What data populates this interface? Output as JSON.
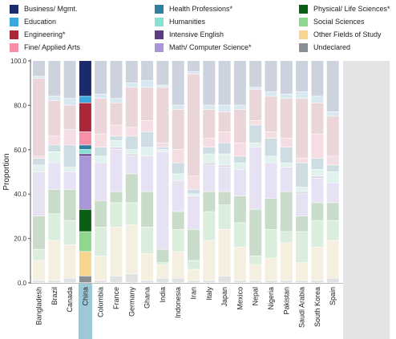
{
  "chart_data": {
    "type": "bar",
    "stacked": true,
    "ylabel": "Proportion",
    "ylim": [
      0,
      100
    ],
    "yticks": [
      0.0,
      20.0,
      40.0,
      60.0,
      80.0,
      100.0
    ],
    "legend_placement": "top",
    "highlighted_category": "China",
    "categories": [
      "Bangladesh",
      "Brazil",
      "Canada",
      "China",
      "Colombia",
      "France",
      "Germany",
      "Ghana",
      "India",
      "Indonesia",
      "Iran",
      "Italy",
      "Japan",
      "Mexico",
      "Nepal",
      "Nigeria",
      "Pakistan",
      "Saudi Arabia",
      "South Korea",
      "Spain"
    ],
    "series": [
      {
        "name": "Undeclared",
        "color": "#8a8f94",
        "faded": "#e0e1e2",
        "values": [
          1,
          1,
          2,
          3,
          1,
          3,
          4,
          1,
          2,
          2,
          1,
          1,
          3,
          1,
          1,
          1,
          1,
          1,
          1,
          2
        ]
      },
      {
        "name": "Other Fields of Study",
        "color": "#f7d58f",
        "faded": "#f5efe0",
        "values": [
          9,
          18,
          15,
          11,
          11,
          22,
          22,
          12,
          6,
          12,
          5,
          18,
          21,
          15,
          7,
          10,
          17,
          8,
          15,
          17
        ]
      },
      {
        "name": "Social Sciences",
        "color": "#8fd68f",
        "faded": "#dbeede",
        "values": [
          5,
          12,
          11,
          9,
          13,
          11,
          10,
          12,
          1,
          10,
          4,
          13,
          11,
          11,
          4,
          13,
          5,
          14,
          12,
          9
        ]
      },
      {
        "name": "Physical/ Life Sciences*",
        "color": "#0b5f14",
        "faded": "#c9dcca",
        "values": [
          15,
          11,
          14,
          10,
          12,
          5,
          13,
          16,
          6,
          8,
          14,
          9,
          6,
          12,
          21,
          14,
          18,
          7,
          8,
          8
        ]
      },
      {
        "name": "Math/ Computer Science*",
        "color": "#a896d9",
        "faded": "#e6e2f3",
        "values": [
          20,
          12,
          8,
          24,
          17,
          19,
          8,
          16,
          44,
          14,
          15,
          12,
          11,
          12,
          28,
          16,
          11,
          10,
          11,
          9
        ]
      },
      {
        "name": "Intensive English",
        "color": "#5b3a86",
        "faded": "#dcd8e4",
        "values": [
          0,
          0,
          0,
          1,
          0,
          1,
          1,
          0,
          0,
          0,
          0,
          1,
          1,
          0,
          0,
          0,
          0,
          1,
          1,
          0
        ]
      },
      {
        "name": "Humanities",
        "color": "#88e0d3",
        "faded": "#e0f1ee",
        "values": [
          3,
          5,
          2,
          2,
          3,
          3,
          2,
          4,
          1,
          3,
          1,
          4,
          5,
          3,
          2,
          3,
          2,
          2,
          3,
          5
        ]
      },
      {
        "name": "Health Professions*",
        "color": "#317f9e",
        "faded": "#cddde3",
        "values": [
          3,
          3,
          10,
          2,
          4,
          2,
          6,
          7,
          1,
          5,
          2,
          3,
          5,
          3,
          8,
          8,
          7,
          11,
          5,
          3
        ]
      },
      {
        "name": "Fine/ Applied Arts",
        "color": "#f590a8",
        "faded": "#f4dde3",
        "values": [
          1,
          4,
          7,
          6,
          6,
          5,
          4,
          5,
          2,
          6,
          6,
          4,
          5,
          6,
          2,
          3,
          4,
          2,
          11,
          4
        ]
      },
      {
        "name": "Engineering*",
        "color": "#a8283a",
        "faded": "#ead5d8",
        "values": [
          35,
          16,
          11,
          13,
          16,
          10,
          18,
          15,
          25,
          18,
          46,
          13,
          9,
          15,
          14,
          16,
          18,
          27,
          14,
          18
        ]
      },
      {
        "name": "Education",
        "color": "#3aa8dc",
        "faded": "#d8e8f0",
        "values": [
          1,
          2,
          3,
          3,
          2,
          2,
          2,
          3,
          1,
          2,
          1,
          2,
          3,
          2,
          1,
          2,
          2,
          3,
          3,
          2
        ]
      },
      {
        "name": "Business/ Mgmt.",
        "color": "#1a2a6c",
        "faded": "#cdd3de",
        "values": [
          7,
          16,
          17,
          16,
          15,
          17,
          10,
          9,
          11,
          20,
          5,
          20,
          20,
          20,
          12,
          14,
          15,
          14,
          16,
          23
        ]
      }
    ]
  }
}
